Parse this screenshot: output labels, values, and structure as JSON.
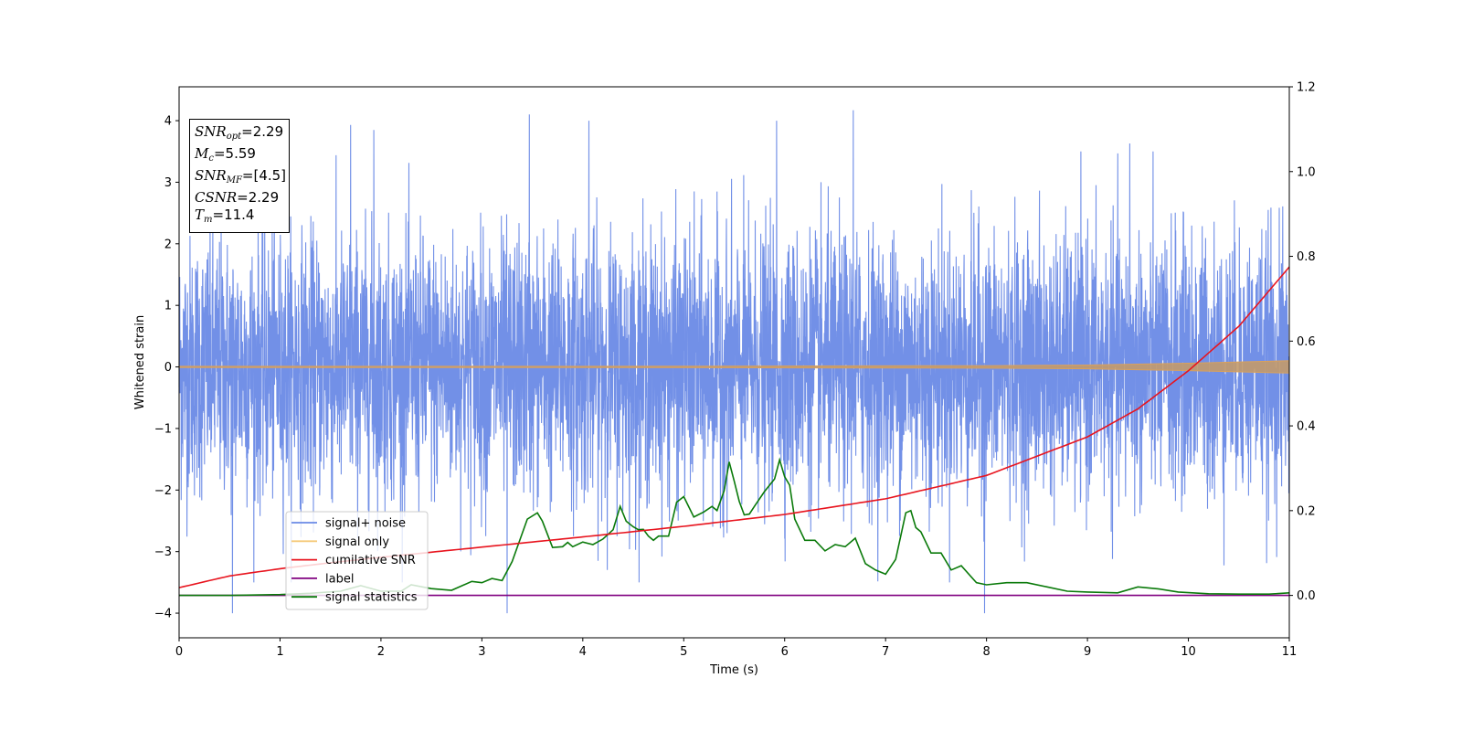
{
  "chart_data": {
    "type": "line",
    "xlabel": "Time (s)",
    "ylabel": "Whitened strain",
    "xlim": [
      0,
      11
    ],
    "ylim": [
      -4.4,
      4.55
    ],
    "y2lim": [
      -0.1,
      1.2
    ],
    "xticks": [
      "0",
      "1",
      "2",
      "3",
      "4",
      "5",
      "6",
      "7",
      "8",
      "9",
      "10",
      "11"
    ],
    "yticks": [
      "−4",
      "−3",
      "−2",
      "−1",
      "0",
      "1",
      "2",
      "3",
      "4"
    ],
    "y2ticks": [
      "0.0",
      "0.2",
      "0.4",
      "0.6",
      "0.8",
      "1.0",
      "1.2"
    ],
    "grid": false,
    "legend_position": "bottom-left",
    "legend": [
      "signal+ noise",
      "signal only",
      "cumilative SNR",
      "label",
      "signal statistics"
    ],
    "stats": {
      "snr_opt": "2.29",
      "mc": "5.59",
      "snr_mf": "[4.5]",
      "csnr": "2.29",
      "tm": "11.4"
    },
    "series": [
      {
        "name": "signal+ noise",
        "axis": "left",
        "color": "#6a8ae6",
        "description_values": "whitened noise, range approx -4.0 to 4.2",
        "peaks": [
          [
            1.7,
            3.93
          ],
          [
            1.93,
            3.85
          ],
          [
            3.47,
            4.1
          ],
          [
            4.06,
            4.0
          ],
          [
            5.92,
            4.0
          ],
          [
            6.68,
            4.17
          ],
          [
            9.42,
            3.63
          ],
          [
            0.53,
            -4.0
          ],
          [
            3.25,
            -4.0
          ],
          [
            7.98,
            -4.0
          ]
        ]
      },
      {
        "name": "signal only",
        "axis": "left",
        "color": "#d9a15c",
        "envelope": [
          [
            0,
            0.01
          ],
          [
            4,
            0.01
          ],
          [
            8,
            0.02
          ],
          [
            9,
            0.03
          ],
          [
            10,
            0.06
          ],
          [
            11,
            0.1
          ]
        ]
      },
      {
        "name": "cumilative SNR",
        "axis": "right",
        "color": "#e8141e",
        "x": [
          0,
          0.5,
          1,
          1.5,
          2,
          3,
          4,
          5,
          6,
          7,
          8,
          9,
          9.5,
          10,
          10.5,
          11
        ],
        "y": [
          0.0183,
          0.046,
          0.063,
          0.077,
          0.09,
          0.114,
          0.138,
          0.163,
          0.191,
          0.228,
          0.283,
          0.374,
          0.44,
          0.53,
          0.635,
          0.775
        ]
      },
      {
        "name": "label",
        "axis": "right",
        "color": "#800080",
        "x": [
          0,
          11
        ],
        "y": [
          0.0,
          0.0
        ]
      },
      {
        "name": "signal statistics",
        "axis": "right",
        "color": "#0a7a0a",
        "x": [
          0,
          0.5,
          1,
          1.3,
          1.6,
          1.8,
          2,
          2.2,
          2.3,
          2.5,
          2.7,
          2.9,
          3.0,
          3.1,
          3.2,
          3.3,
          3.45,
          3.55,
          3.6,
          3.7,
          3.8,
          3.85,
          3.9,
          4.0,
          4.1,
          4.2,
          4.3,
          4.37,
          4.43,
          4.5,
          4.55,
          4.6,
          4.65,
          4.7,
          4.75,
          4.85,
          4.93,
          5.0,
          5.1,
          5.2,
          5.28,
          5.33,
          5.4,
          5.45,
          5.5,
          5.55,
          5.6,
          5.65,
          5.7,
          5.8,
          5.9,
          5.95,
          6.0,
          6.05,
          6.1,
          6.2,
          6.3,
          6.4,
          6.5,
          6.6,
          6.7,
          6.8,
          6.9,
          7.0,
          7.1,
          7.2,
          7.25,
          7.3,
          7.35,
          7.45,
          7.55,
          7.65,
          7.75,
          7.9,
          8.0,
          8.2,
          8.4,
          8.6,
          8.8,
          9.0,
          9.3,
          9.5,
          9.7,
          9.9,
          10.2,
          10.5,
          10.8,
          11
        ],
        "y": [
          0.0,
          0.0,
          0.002,
          0.005,
          0.01,
          0.023,
          0.01,
          0.01,
          0.025,
          0.016,
          0.012,
          0.033,
          0.03,
          0.04,
          0.035,
          0.08,
          0.18,
          0.195,
          0.175,
          0.113,
          0.115,
          0.125,
          0.115,
          0.126,
          0.12,
          0.133,
          0.155,
          0.21,
          0.175,
          0.162,
          0.155,
          0.156,
          0.14,
          0.13,
          0.14,
          0.14,
          0.22,
          0.233,
          0.185,
          0.197,
          0.21,
          0.2,
          0.247,
          0.315,
          0.27,
          0.222,
          0.19,
          0.192,
          0.21,
          0.245,
          0.275,
          0.32,
          0.28,
          0.26,
          0.18,
          0.13,
          0.13,
          0.105,
          0.12,
          0.115,
          0.135,
          0.075,
          0.06,
          0.05,
          0.085,
          0.195,
          0.2,
          0.16,
          0.15,
          0.1,
          0.1,
          0.06,
          0.07,
          0.03,
          0.025,
          0.03,
          0.03,
          0.02,
          0.01,
          0.008,
          0.006,
          0.02,
          0.0155,
          0.008,
          0.004,
          0.003,
          0.003,
          0.006
        ]
      }
    ]
  }
}
